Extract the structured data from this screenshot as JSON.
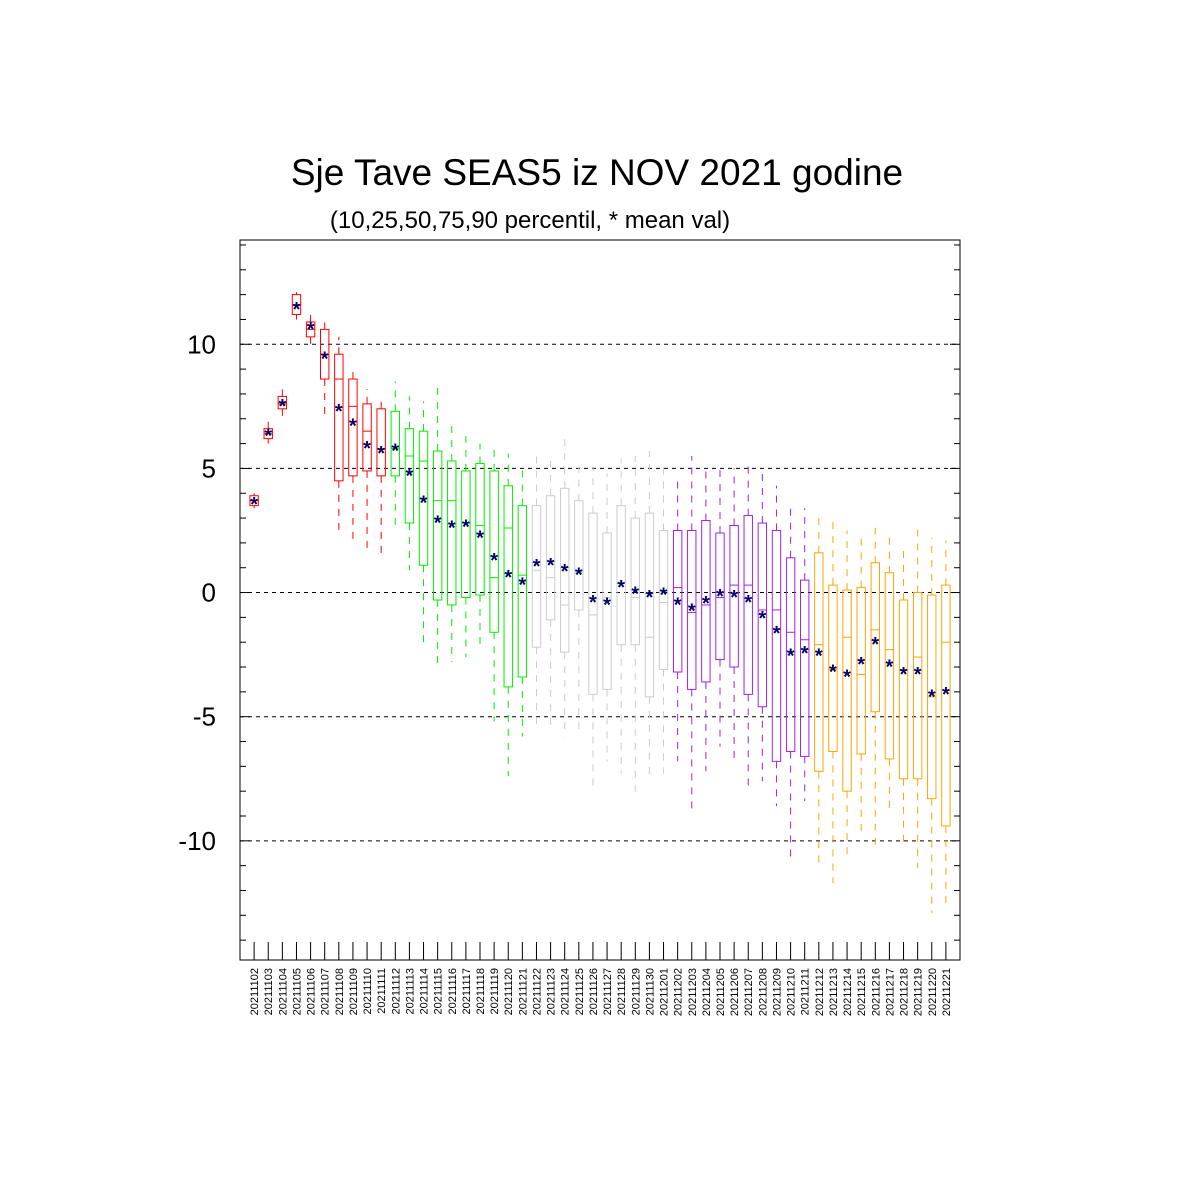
{
  "chart_data": {
    "type": "box",
    "title": "Sje Tave SEAS5 iz NOV 2021 godine",
    "subtitle": "(10,25,50,75,90 percentil, * mean val)",
    "ylim": [
      -14.8,
      14.2
    ],
    "yticks": [
      10,
      5,
      0,
      -5,
      -10
    ],
    "ytick_labels": [
      "10",
      "5",
      "0",
      "-5",
      "-10"
    ],
    "grid_lines": [
      10,
      5,
      0,
      -5,
      -10
    ],
    "mean_marker": "*",
    "mean_color": "#000066",
    "categories": [
      "20211102",
      "20211103",
      "20211104",
      "20211105",
      "20211106",
      "20211107",
      "20211108",
      "20211109",
      "20211110",
      "20211111",
      "20211112",
      "20211113",
      "20211114",
      "20211115",
      "20211116",
      "20211117",
      "20211118",
      "20211119",
      "20211120",
      "20211121",
      "20211122",
      "20211123",
      "20211124",
      "20211125",
      "20211126",
      "20211127",
      "20211128",
      "20211129",
      "20211130",
      "20211201",
      "20211202",
      "20211203",
      "20211204",
      "20211205",
      "20211206",
      "20211207",
      "20211208",
      "20211209",
      "20211210",
      "20211211",
      "20211212",
      "20211213",
      "20211214",
      "20211215",
      "20211216",
      "20211217",
      "20211218",
      "20211219",
      "20211220",
      "20211221"
    ],
    "colors": [
      "#ff0000",
      "#ff0000",
      "#ff0000",
      "#ff0000",
      "#ff0000",
      "#ff0000",
      "#ff0000",
      "#ff0000",
      "#ff0000",
      "#ff0000",
      "#00ee00",
      "#00ee00",
      "#00ee00",
      "#00ee00",
      "#00ee00",
      "#00ee00",
      "#00ee00",
      "#00ee00",
      "#00ee00",
      "#00ee00",
      "#cccccc",
      "#cccccc",
      "#cccccc",
      "#cccccc",
      "#cccccc",
      "#cccccc",
      "#cccccc",
      "#cccccc",
      "#cccccc",
      "#cccccc",
      "#a020f0",
      "#a020f0",
      "#a020f0",
      "#a020f0",
      "#a020f0",
      "#a020f0",
      "#a020f0",
      "#a020f0",
      "#a020f0",
      "#a020f0",
      "#ffa500",
      "#ffa500",
      "#ffa500",
      "#ffa500",
      "#ffa500",
      "#ffa500",
      "#ffa500",
      "#ffa500",
      "#ffa500",
      "#ffa500"
    ],
    "p10": [
      3.4,
      6.0,
      7.1,
      11.0,
      9.9,
      7.0,
      2.4,
      1.9,
      1.8,
      1.6,
      2.7,
      0.9,
      -2.1,
      -3.1,
      -2.8,
      -2.6,
      -2.2,
      -5.2,
      -7.4,
      -5.8,
      -5.4,
      -5.6,
      -5.8,
      -5.5,
      -7.8,
      -6.8,
      -7.3,
      -8.3,
      -7.4,
      -7.3,
      -6.8,
      -8.8,
      -7.2,
      -6.2,
      -6.8,
      -7.9,
      -7.6,
      -8.6,
      -10.9,
      -8.4,
      -10.9,
      -11.7,
      -10.6,
      -9.7,
      -10.4,
      -8.8,
      -10.3,
      -11.1,
      -12.9,
      -12.7
    ],
    "p25": [
      3.5,
      6.2,
      7.4,
      11.2,
      10.3,
      8.6,
      4.5,
      4.7,
      4.9,
      4.7,
      4.7,
      2.8,
      1.1,
      -0.3,
      -0.5,
      -0.2,
      -0.1,
      -1.6,
      -3.8,
      -3.4,
      -2.2,
      -1.1,
      -2.4,
      -0.7,
      -4.1,
      -3.9,
      -2.1,
      -2.1,
      -4.2,
      -3.1,
      -3.2,
      -3.9,
      -3.6,
      -2.7,
      -3.0,
      -4.1,
      -4.6,
      -6.8,
      -6.4,
      -6.6,
      -7.2,
      -6.4,
      -8.0,
      -6.5,
      -4.8,
      -6.7,
      -7.5,
      -7.5,
      -8.3,
      -9.4
    ],
    "p50": [
      3.7,
      6.4,
      7.6,
      11.6,
      10.6,
      9.6,
      8.6,
      7.5,
      6.5,
      5.8,
      5.8,
      5.5,
      5.3,
      3.7,
      3.7,
      2.8,
      2.7,
      0.6,
      2.6,
      0.7,
      0.9,
      0.6,
      -0.5,
      0.8,
      -0.9,
      -0.2,
      0.4,
      -0.2,
      -1.8,
      -0.4,
      0.2,
      -0.8,
      -0.5,
      -0.2,
      0.3,
      0.3,
      -0.7,
      -0.7,
      -1.6,
      -1.9,
      -2.1,
      -3.1,
      -1.8,
      -3.3,
      -1.5,
      -2.3,
      -3.1,
      -2.6,
      -4.2,
      -2.0
    ],
    "p75": [
      3.9,
      6.6,
      7.9,
      12.0,
      10.9,
      10.6,
      9.6,
      8.6,
      7.6,
      7.4,
      7.3,
      6.6,
      6.5,
      5.7,
      5.3,
      4.9,
      5.2,
      4.9,
      4.3,
      3.5,
      3.5,
      3.9,
      4.2,
      3.7,
      3.2,
      2.4,
      3.5,
      3.0,
      3.2,
      2.5,
      2.5,
      2.5,
      2.9,
      2.4,
      2.7,
      3.1,
      2.8,
      2.5,
      1.4,
      0.5,
      1.6,
      0.3,
      0.1,
      0.2,
      1.2,
      0.8,
      -0.3,
      0.0,
      -0.1,
      0.3
    ],
    "p90": [
      4.0,
      7.0,
      8.2,
      12.1,
      11.3,
      11.1,
      10.3,
      9.1,
      8.2,
      7.9,
      8.5,
      7.9,
      7.7,
      8.4,
      6.8,
      6.6,
      6.0,
      5.9,
      5.6,
      5.2,
      5.5,
      5.6,
      6.2,
      5.2,
      5.1,
      4.8,
      5.4,
      5.5,
      5.7,
      5.2,
      4.6,
      5.5,
      5.0,
      5.1,
      5.0,
      5.2,
      4.9,
      4.3,
      3.4,
      3.4,
      3.0,
      2.9,
      2.5,
      2.3,
      2.8,
      2.4,
      1.9,
      2.6,
      2.2,
      2.1
    ],
    "mean": [
      3.65,
      6.4,
      7.6,
      11.5,
      10.7,
      9.5,
      7.4,
      6.8,
      5.9,
      5.7,
      5.8,
      4.8,
      3.7,
      2.9,
      2.7,
      2.75,
      2.3,
      1.4,
      0.7,
      0.4,
      1.15,
      1.2,
      0.95,
      0.8,
      -0.3,
      -0.4,
      0.3,
      0.05,
      -0.1,
      0.0,
      -0.4,
      -0.65,
      -0.35,
      -0.05,
      -0.1,
      -0.3,
      -0.95,
      -1.55,
      -2.45,
      -2.35,
      -2.45,
      -3.1,
      -3.3,
      -2.8,
      -2.0,
      -2.9,
      -3.2,
      -3.2,
      -4.1,
      -4.0
    ]
  }
}
